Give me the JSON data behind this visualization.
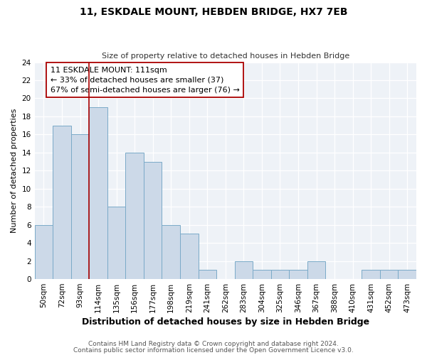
{
  "title": "11, ESKDALE MOUNT, HEBDEN BRIDGE, HX7 7EB",
  "subtitle": "Size of property relative to detached houses in Hebden Bridge",
  "xlabel": "Distribution of detached houses by size in Hebden Bridge",
  "ylabel": "Number of detached properties",
  "footer_line1": "Contains HM Land Registry data © Crown copyright and database right 2024.",
  "footer_line2": "Contains public sector information licensed under the Open Government Licence v3.0.",
  "bin_labels": [
    "50sqm",
    "72sqm",
    "93sqm",
    "114sqm",
    "135sqm",
    "156sqm",
    "177sqm",
    "198sqm",
    "219sqm",
    "241sqm",
    "262sqm",
    "283sqm",
    "304sqm",
    "325sqm",
    "346sqm",
    "367sqm",
    "388sqm",
    "410sqm",
    "431sqm",
    "452sqm",
    "473sqm"
  ],
  "bin_values": [
    6,
    17,
    16,
    19,
    8,
    14,
    13,
    6,
    5,
    1,
    0,
    2,
    1,
    1,
    1,
    2,
    0,
    0,
    1,
    1,
    1
  ],
  "bar_color": "#ccd9e8",
  "bar_edge_color": "#7aaac8",
  "property_line_bin": 3,
  "property_line_color": "#aa0000",
  "annotation_line1": "11 ESKDALE MOUNT: 111sqm",
  "annotation_line2": "← 33% of detached houses are smaller (37)",
  "annotation_line3": "67% of semi-detached houses are larger (76) →",
  "ylim": [
    0,
    24
  ],
  "background_color": "#ffffff",
  "plot_bg_color": "#eef2f7",
  "grid_color": "#ffffff",
  "title_fontsize": 10,
  "subtitle_fontsize": 8,
  "xlabel_fontsize": 9,
  "ylabel_fontsize": 8,
  "tick_fontsize": 7.5,
  "footer_fontsize": 6.5,
  "ann_fontsize": 8
}
